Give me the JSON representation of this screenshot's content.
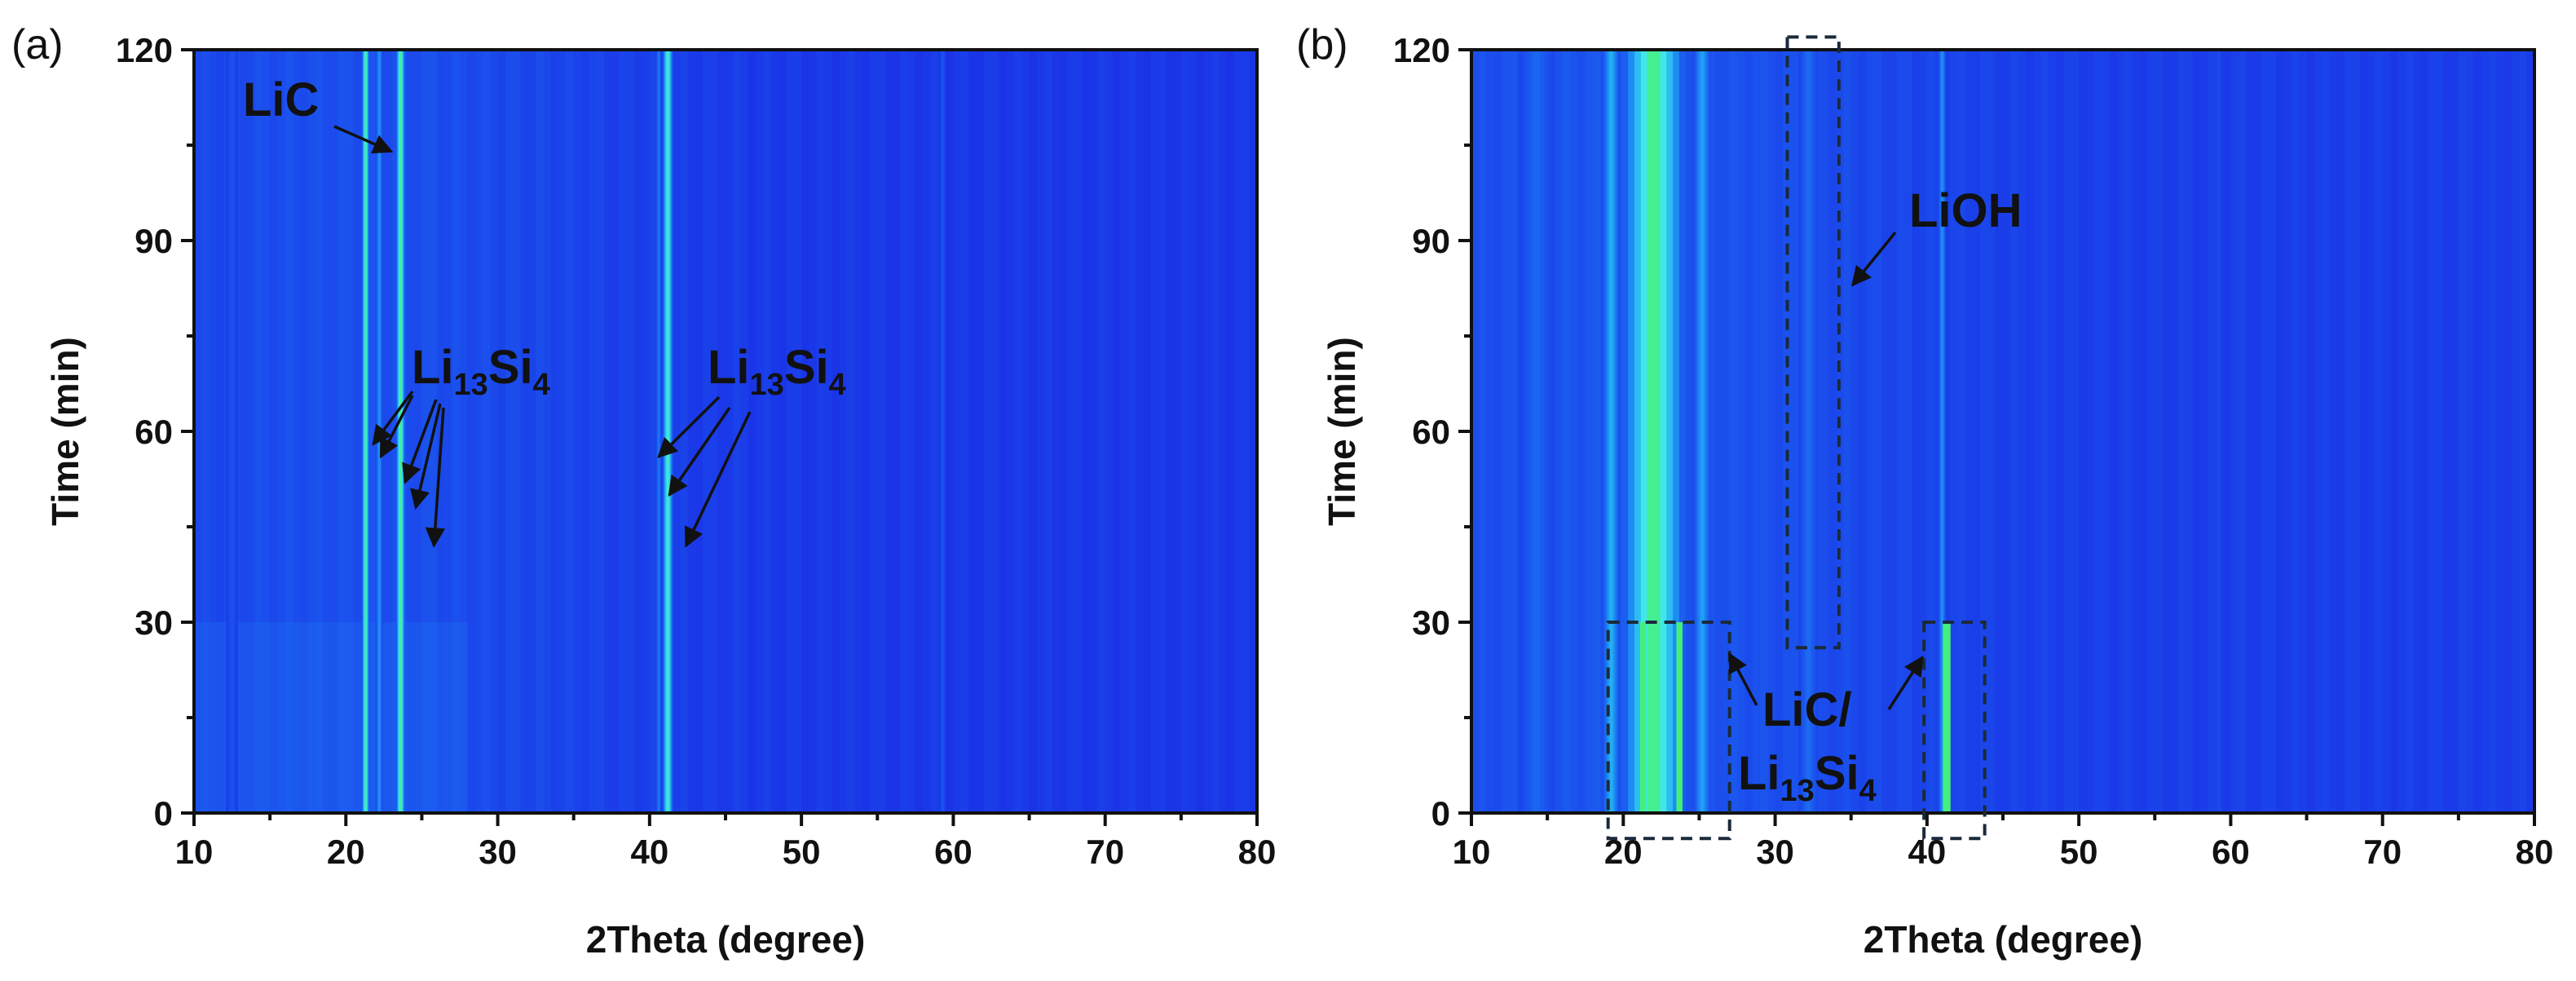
{
  "chart_data": [
    {
      "type": "heatmap",
      "panel_label": "(a)",
      "xlabel": "2Theta (degree)",
      "ylabel": "Time (min)",
      "xlim": [
        10,
        80
      ],
      "ylim": [
        0,
        120
      ],
      "xticks": [
        "10",
        "20",
        "30",
        "40",
        "50",
        "60",
        "70",
        "80"
      ],
      "yticks": [
        "0",
        "30",
        "60",
        "90",
        "120"
      ],
      "colormap": [
        "#1a2fe6",
        "#1b5ef0",
        "#1fa0f4",
        "#3fe6f0",
        "#45f07a"
      ],
      "background_intensity": 0.05,
      "bands": [
        {
          "x": 12.5,
          "width": 0.8,
          "intensity": 0.18
        },
        {
          "x": 21.3,
          "width": 0.5,
          "intensity": 0.95
        },
        {
          "x": 22.2,
          "width": 0.5,
          "intensity": 0.45
        },
        {
          "x": 23.6,
          "width": 0.6,
          "intensity": 0.95
        },
        {
          "x": 41.2,
          "width": 0.7,
          "intensity": 0.85
        },
        {
          "x": 40.6,
          "width": 0.4,
          "intensity": 0.35
        },
        {
          "x": 59.3,
          "width": 0.4,
          "intensity": 0.2
        }
      ],
      "annotations": [
        {
          "text": "LiC",
          "sub": "",
          "tail": "",
          "arrows_to": [
            [
              23.0,
              104
            ]
          ]
        },
        {
          "text": "Li",
          "sub": "13",
          "tail": "Si",
          "sub2": "4",
          "arrows_to": [
            [
              21.8,
              58
            ],
            [
              22.3,
              56
            ],
            [
              23.9,
              52
            ],
            [
              24.6,
              48
            ],
            [
              25.8,
              42
            ]
          ]
        },
        {
          "text": "Li",
          "sub": "13",
          "tail": "Si",
          "sub2": "4",
          "arrows_to": [
            [
              40.6,
              56
            ],
            [
              41.3,
              50
            ],
            [
              42.4,
              42
            ]
          ]
        }
      ]
    },
    {
      "type": "heatmap",
      "panel_label": "(b)",
      "xlabel": "2Theta (degree)",
      "ylabel": "Time (min)",
      "xlim": [
        10,
        80
      ],
      "ylim": [
        0,
        120
      ],
      "xticks": [
        "10",
        "20",
        "30",
        "40",
        "50",
        "60",
        "70",
        "80"
      ],
      "yticks": [
        "0",
        "30",
        "60",
        "90",
        "120"
      ],
      "colormap": [
        "#1a2fe6",
        "#1b5ef0",
        "#1fa0f4",
        "#3fe6f0",
        "#45f07a"
      ],
      "background_intensity": 0.08,
      "bands": [
        {
          "x": 14.3,
          "width": 2.4,
          "intensity": 0.28
        },
        {
          "x": 19.2,
          "width": 1.2,
          "intensity": 0.55
        },
        {
          "x": 22.0,
          "width": 4.2,
          "intensity": 0.95
        },
        {
          "x": 25.2,
          "width": 1.2,
          "intensity": 0.5
        },
        {
          "x": 32.2,
          "width": 1.3,
          "intensity": 0.3
        },
        {
          "x": 41.0,
          "width": 0.5,
          "intensity": 0.45
        },
        {
          "x": 59.2,
          "width": 0.4,
          "intensity": 0.15
        }
      ],
      "bottom_bands": [
        {
          "x": 21.3,
          "width": 0.4,
          "intensity": 1.0,
          "y_max": 30
        },
        {
          "x": 23.7,
          "width": 0.4,
          "intensity": 1.0,
          "y_max": 30
        },
        {
          "x": 41.3,
          "width": 0.5,
          "intensity": 1.0,
          "y_max": 30
        }
      ],
      "dashed_boxes": [
        {
          "x1": 19.0,
          "x2": 27.0,
          "y1": -4,
          "y2": 30
        },
        {
          "x1": 39.8,
          "x2": 43.8,
          "y1": -4,
          "y2": 30
        },
        {
          "x1": 30.8,
          "x2": 34.2,
          "y1": 26,
          "y2": 122
        }
      ],
      "annotations": [
        {
          "text": "LiOH",
          "sub": "",
          "tail": "",
          "arrows_to": [
            [
              35.1,
              83
            ]
          ]
        },
        {
          "text": "LiC/",
          "sub": "",
          "tail": "",
          "arrows_to": [
            [
              27.0,
              25
            ],
            [
              39.7,
              24.5
            ]
          ]
        },
        {
          "text": "Li",
          "sub": "13",
          "tail": "Si",
          "sub2": "4",
          "arrows_to": []
        }
      ]
    }
  ]
}
